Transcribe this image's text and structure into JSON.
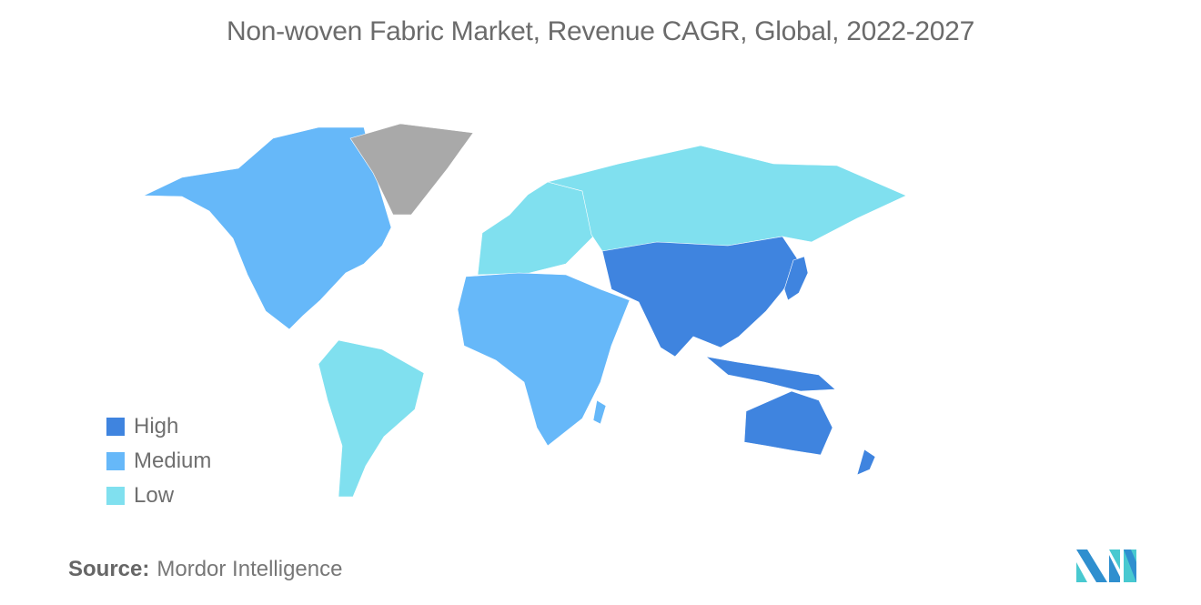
{
  "title": "Non-woven Fabric Market, Revenue CAGR, Global, 2022-2027",
  "legend": [
    {
      "label": "High",
      "color": "#3f84df"
    },
    {
      "label": "Medium",
      "color": "#66b8f9"
    },
    {
      "label": "Low",
      "color": "#80e0ef"
    }
  ],
  "no_data_color": "#a9a9a9",
  "region_levels": {
    "north-america": "Medium",
    "south-america": "Low",
    "europe": "Low",
    "russia": "Low",
    "africa-middle-east": "Medium",
    "asia": "High",
    "japan": "High",
    "southeast-asia-islands": "High",
    "australia": "High",
    "new-zealand": "High",
    "madagascar": "Medium",
    "greenland": "none"
  },
  "source": {
    "label": "Source:",
    "value": "Mordor Intelligence"
  }
}
